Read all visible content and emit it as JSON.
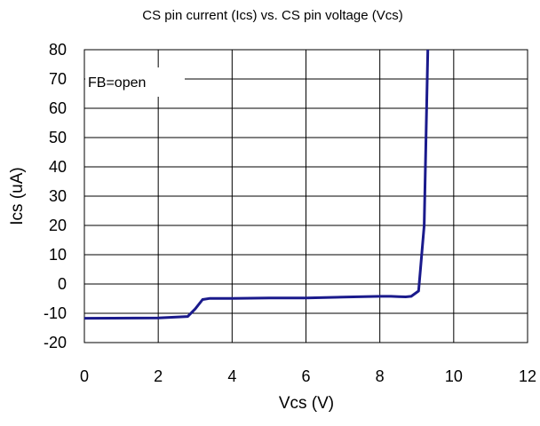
{
  "chart_data": {
    "type": "line",
    "title": "CS pin current (Ics) vs. CS pin voltage (Vcs)",
    "xlabel": "Vcs (V)",
    "ylabel": "Ics (uA)",
    "xlim": [
      0,
      12
    ],
    "ylim": [
      -20,
      80
    ],
    "x_ticks": [
      "0",
      "2",
      "4",
      "6",
      "8",
      "10",
      "12"
    ],
    "y_ticks": [
      "80",
      "70",
      "60",
      "50",
      "40",
      "30",
      "20",
      "10",
      "0",
      "-10",
      "-20"
    ],
    "grid": true,
    "legend": "none",
    "annotation": "FB=open",
    "line_color": "#1a1a8c",
    "series": [
      {
        "x": [
          0,
          2.0,
          2.8,
          3.0,
          3.2,
          3.4,
          4,
          5,
          6,
          7,
          8,
          8.3,
          8.5,
          8.7,
          8.85,
          9.05,
          9.1,
          9.2,
          9.3
        ],
        "y": [
          -11.7,
          -11.6,
          -11.1,
          -8.5,
          -5.3,
          -4.9,
          -4.9,
          -4.8,
          -4.8,
          -4.5,
          -4.2,
          -4.2,
          -4.3,
          -4.4,
          -4.2,
          -2.4,
          5,
          20,
          80
        ]
      }
    ]
  }
}
